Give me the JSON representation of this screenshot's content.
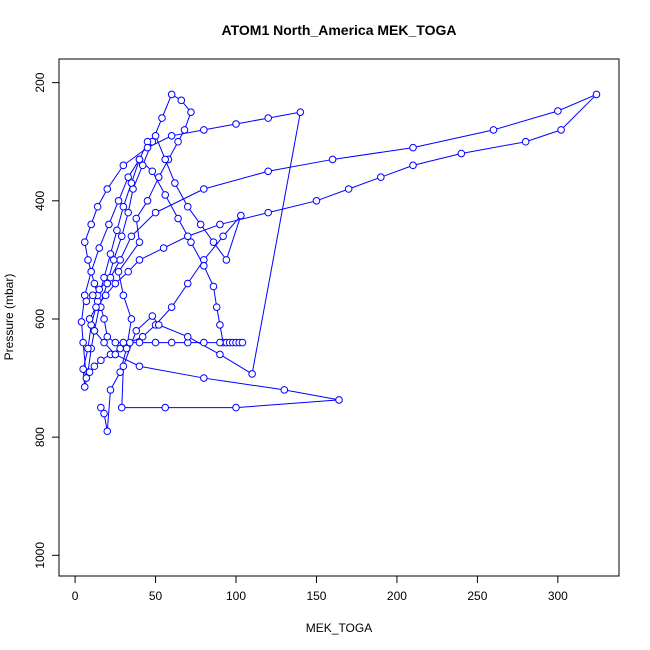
{
  "chart_data": {
    "type": "line",
    "title": "ATOM1 North_America MEK_TOGA",
    "xlabel": "MEK_TOGA",
    "ylabel": "Pressure (mbar)",
    "xlim": [
      -10,
      338
    ],
    "ylim": [
      1035,
      160
    ],
    "y_inverted": true,
    "x_ticks": [
      0,
      50,
      100,
      150,
      200,
      250,
      300
    ],
    "y_ticks": [
      200,
      400,
      600,
      800,
      1000
    ],
    "grid": false,
    "series": [
      {
        "color": "#0000ff",
        "marker": "open-circle",
        "x": [
          16,
          18,
          20,
          22,
          28,
          32,
          35,
          30,
          27,
          40,
          38,
          45,
          52,
          58,
          64,
          68,
          72,
          66,
          60,
          54,
          48,
          42,
          36,
          33,
          29,
          24,
          20,
          15,
          12,
          10,
          8,
          6,
          5,
          8,
          10,
          14,
          18,
          22,
          26,
          30,
          35,
          40,
          45,
          50,
          56,
          62,
          70,
          78,
          86,
          94,
          103,
          92,
          80,
          70,
          60,
          50,
          42,
          34,
          28,
          22,
          16,
          12,
          9,
          7,
          5,
          4,
          6,
          10,
          15,
          21,
          27,
          33,
          40,
          48,
          56,
          64,
          72,
          80,
          86,
          88,
          90,
          92,
          94,
          96,
          98,
          100,
          102,
          104,
          90,
          80,
          70,
          60,
          50,
          40,
          30,
          25,
          20,
          18,
          16,
          14,
          12,
          10,
          8,
          6,
          10,
          14,
          20,
          30,
          45,
          60,
          80,
          100,
          120,
          140,
          110,
          90,
          70,
          52,
          48,
          38,
          30,
          29,
          56,
          100,
          164,
          130,
          80,
          40,
          25,
          18,
          12,
          9,
          13,
          19,
          25,
          33,
          40,
          55,
          70,
          90,
          120,
          150,
          170,
          190,
          210,
          240,
          280,
          302,
          324,
          300,
          260,
          210,
          160,
          120,
          80,
          50,
          35,
          28,
          22,
          15,
          11,
          7
        ],
        "y": [
          750,
          760,
          790,
          720,
          690,
          650,
          600,
          560,
          520,
          470,
          430,
          400,
          360,
          330,
          300,
          280,
          250,
          230,
          220,
          260,
          300,
          340,
          380,
          420,
          460,
          500,
          540,
          580,
          620,
          650,
          690,
          715,
          685,
          650,
          610,
          570,
          530,
          490,
          450,
          410,
          370,
          330,
          300,
          290,
          330,
          370,
          410,
          440,
          470,
          500,
          425,
          460,
          500,
          540,
          580,
          610,
          630,
          640,
          650,
          660,
          670,
          680,
          690,
          700,
          640,
          605,
          560,
          520,
          480,
          440,
          400,
          360,
          330,
          350,
          390,
          430,
          470,
          510,
          545,
          580,
          610,
          640,
          640,
          640,
          640,
          640,
          640,
          640,
          640,
          640,
          640,
          640,
          640,
          640,
          640,
          640,
          630,
          600,
          580,
          560,
          540,
          520,
          500,
          470,
          440,
          410,
          380,
          340,
          310,
          290,
          280,
          270,
          260,
          250,
          693,
          660,
          630,
          610,
          595,
          620,
          680,
          750,
          750,
          750,
          737,
          720,
          700,
          680,
          660,
          640,
          620,
          600,
          580,
          560,
          540,
          520,
          500,
          480,
          460,
          440,
          420,
          400,
          380,
          360,
          340,
          320,
          300,
          280,
          220,
          248,
          280,
          310,
          330,
          350,
          380,
          420,
          460,
          500,
          530,
          550,
          560,
          570
        ]
      }
    ]
  }
}
